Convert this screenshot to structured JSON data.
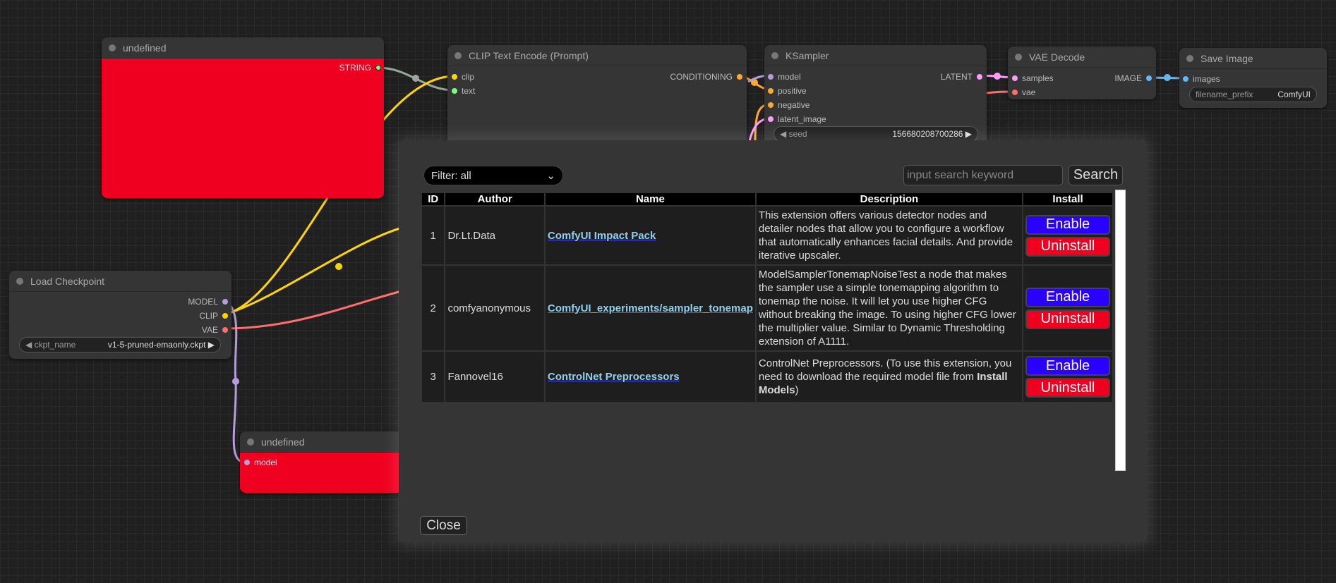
{
  "nodes": {
    "string_node": {
      "title": "undefined",
      "output": "STRING"
    },
    "clip_encode": {
      "title": "CLIP Text Encode (Prompt)",
      "inputs": [
        "clip",
        "text"
      ],
      "output": "CONDITIONING"
    },
    "ksampler": {
      "title": "KSampler",
      "inputs": [
        "model",
        "positive",
        "negative",
        "latent_image"
      ],
      "output": "LATENT",
      "seed_label": "seed",
      "seed_value": "156680208700286"
    },
    "vae_decode": {
      "title": "VAE Decode",
      "inputs": [
        "samples",
        "vae"
      ],
      "output": "IMAGE"
    },
    "save_image": {
      "title": "Save Image",
      "input": "images",
      "prefix_label": "filename_prefix",
      "prefix_value": "ComfyUI"
    },
    "load_checkpoint": {
      "title": "Load Checkpoint",
      "outputs": [
        "MODEL",
        "CLIP",
        "VAE"
      ],
      "ckpt_label": "ckpt_name",
      "ckpt_value": "v1-5-pruned-emaonly.ckpt"
    },
    "model_node": {
      "title": "undefined",
      "input": "model"
    }
  },
  "dialog": {
    "filter": "Filter: all",
    "search_placeholder": "input search keyword",
    "search_label": "Search",
    "columns": [
      "ID",
      "Author",
      "Name",
      "Description",
      "Install"
    ],
    "rows": [
      {
        "id": "1",
        "author": "Dr.Lt.Data",
        "name": "ComfyUI Impact Pack",
        "description": "This extension offers various detector nodes and detailer nodes that allow you to configure a workflow that automatically enhances facial details. And provide iterative upscaler.",
        "enable": "Enable",
        "uninstall": "Uninstall"
      },
      {
        "id": "2",
        "author": "comfyanonymous",
        "name": "ComfyUI_experiments/sampler_tonemap",
        "description": "ModelSamplerTonemapNoiseTest a node that makes the sampler use a simple tonemapping algorithm to tonemap the noise. It will let you use higher CFG without breaking the image. To using higher CFG lower the multiplier value. Similar to Dynamic Thresholding extension of A1111.",
        "enable": "Enable",
        "uninstall": "Uninstall"
      },
      {
        "id": "3",
        "author": "Fannovel16",
        "name": "ControlNet Preprocessors",
        "description": "ControlNet Preprocessors. (To use this extension, you need to download the required model file from ",
        "description_bold": "Install Models",
        "description_end": ")",
        "enable": "Enable",
        "uninstall": "Uninstall"
      }
    ],
    "close_label": "Close"
  },
  "colors": {
    "enable": "#2a00ff",
    "uninstall": "#f00020",
    "node_red": "#f00020",
    "clip": "#ffd500",
    "vae": "#ff6e6e",
    "model": "#b39ddb",
    "latent": "#ff9cf9",
    "image": "#64b5f6",
    "conditioning": "#ffa931",
    "string": "#77ff77"
  }
}
